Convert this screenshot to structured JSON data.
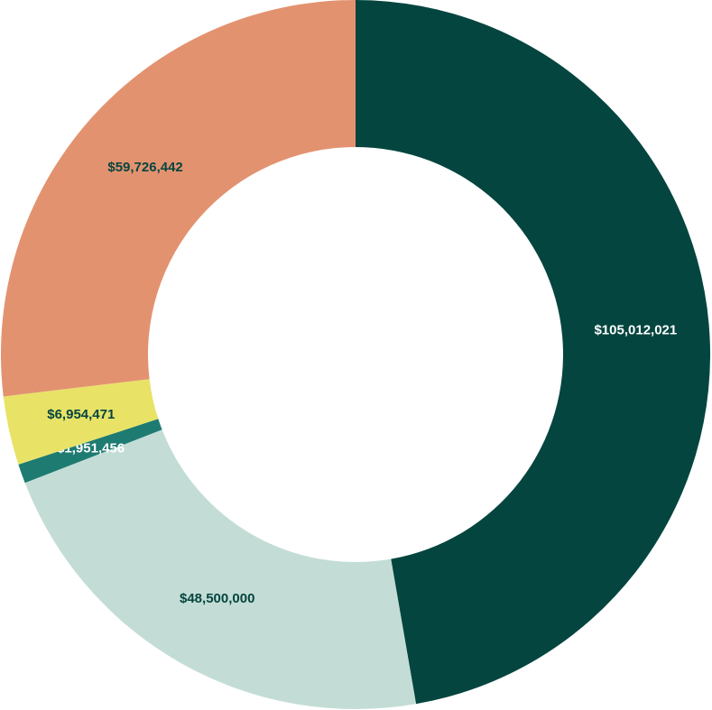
{
  "chart_data": {
    "type": "pie",
    "values": [
      105012021,
      48500000,
      1951456,
      6954471,
      59726442
    ],
    "value_labels": [
      "$105,012,021",
      "$48,500,000",
      "$1,951,456",
      "$6,954,471",
      "$59,726,442"
    ],
    "colors": [
      "#05453f",
      "#c3ddd6",
      "#1e7b72",
      "#e8e367",
      "#e39270"
    ]
  }
}
